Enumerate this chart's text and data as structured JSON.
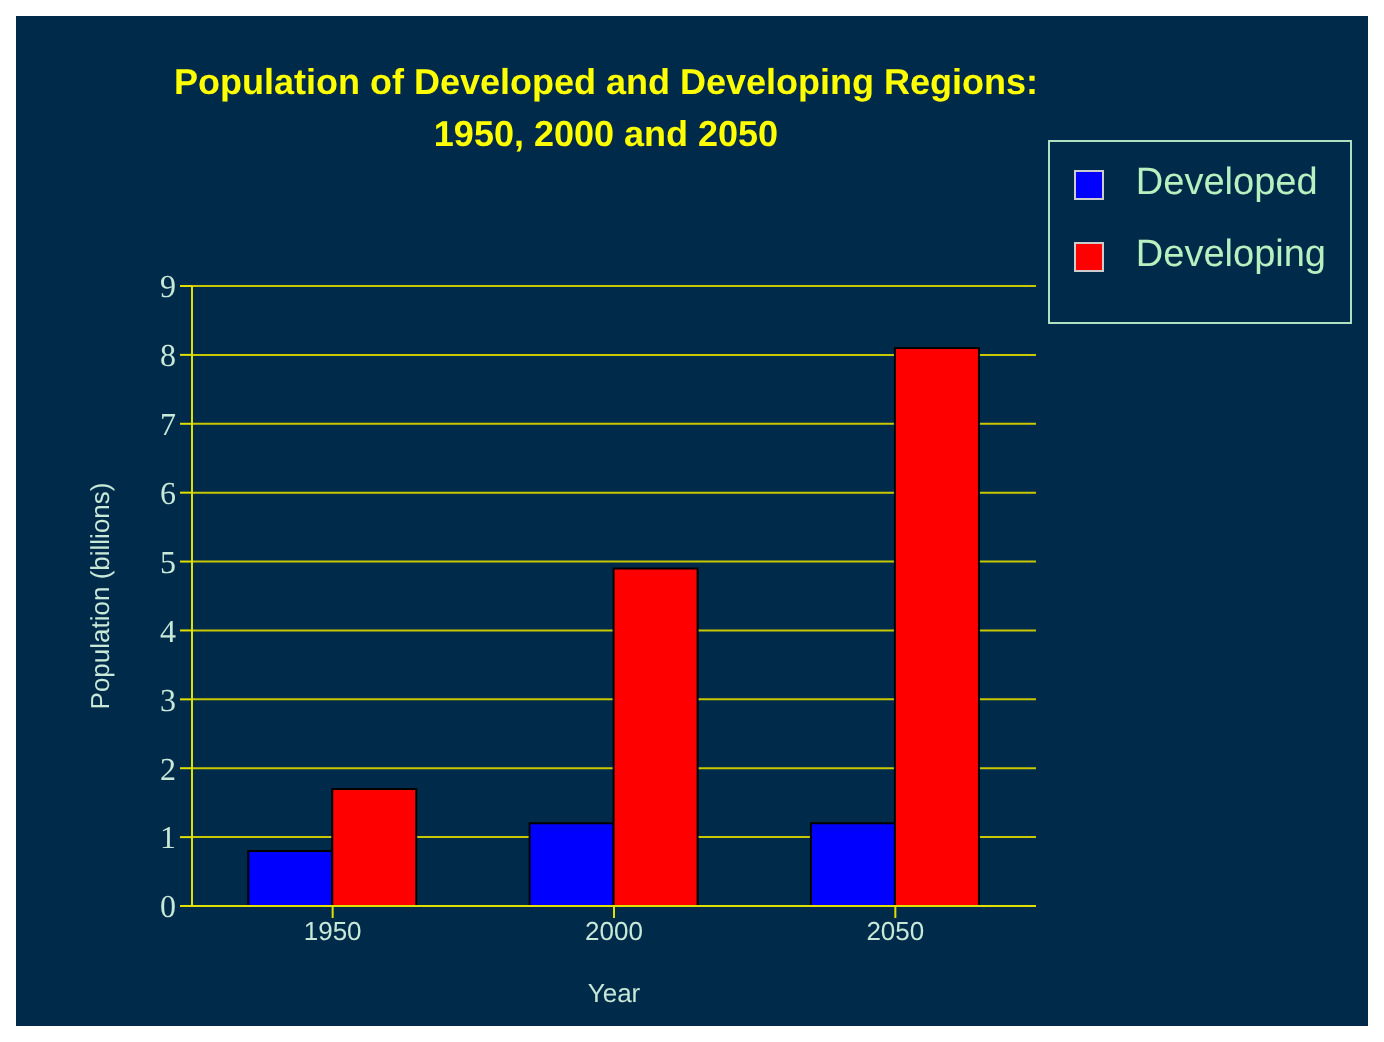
{
  "chart_data": {
    "type": "bar",
    "title": "Population of Developed and  Developing Regions: 1950, 2000 and 2050",
    "xlabel": "Year",
    "ylabel": "Population (billions)",
    "categories": [
      "1950",
      "2000",
      "2050"
    ],
    "series": [
      {
        "name": "Developed",
        "color": "#0000ff",
        "values": [
          0.8,
          1.2,
          1.2
        ]
      },
      {
        "name": "Developing",
        "color": "#ff0000",
        "values": [
          1.7,
          4.9,
          8.1
        ]
      }
    ],
    "ylim": [
      0,
      9
    ],
    "yticks": [
      0,
      1,
      2,
      3,
      4,
      5,
      6,
      7,
      8,
      9
    ],
    "grid": "y",
    "legend": "top right"
  }
}
